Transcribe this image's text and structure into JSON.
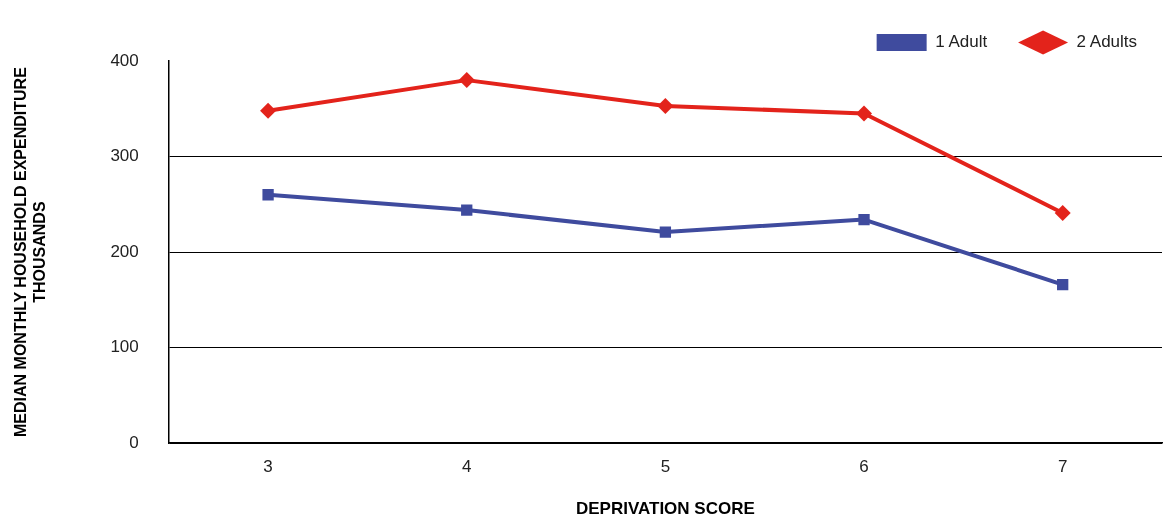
{
  "chart_data": {
    "type": "line",
    "xlabel": "DEPRIVATION SCORE",
    "ylabel": "MEDIAN MONTHLY HOUSEHOLD EXPENDITURE\nTHOUSANDS",
    "categories": [
      "3",
      "4",
      "5",
      "6",
      "7"
    ],
    "series": [
      {
        "name": "1 Adult",
        "color": "#3f4b9e",
        "marker": "square",
        "values": [
          260,
          244,
          221,
          234,
          166
        ]
      },
      {
        "name": "2 Adults",
        "color": "#e3231b",
        "marker": "diamond",
        "values": [
          348,
          380,
          353,
          345,
          241
        ]
      }
    ],
    "ylim": [
      0,
      400
    ],
    "yticks": [
      0,
      100,
      200,
      300,
      400
    ],
    "grid": "y",
    "legend": "top right",
    "line_style": "solid"
  }
}
